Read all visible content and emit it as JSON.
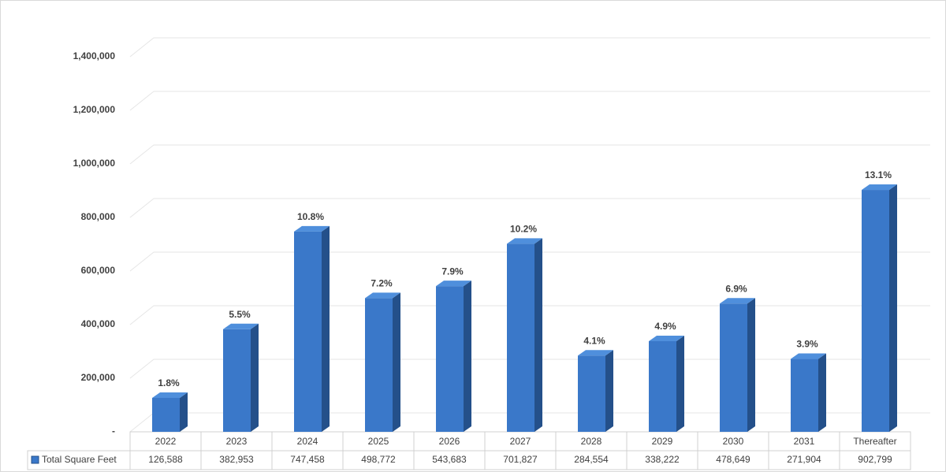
{
  "chart_data": {
    "type": "bar",
    "categories": [
      "2022",
      "2023",
      "2024",
      "2025",
      "2026",
      "2027",
      "2028",
      "2029",
      "2030",
      "2031",
      "Thereafter"
    ],
    "series": [
      {
        "name": "Total Square Feet",
        "color": "#3a78c9",
        "values": [
          126588,
          382953,
          747458,
          498772,
          543683,
          701827,
          284554,
          338222,
          478649,
          271904,
          902799
        ],
        "value_labels": [
          "126,588",
          "382,953",
          "747,458",
          "498,772",
          "543,683",
          "701,827",
          "284,554",
          "338,222",
          "478,649",
          "271,904",
          "902,799"
        ]
      }
    ],
    "percent_labels": [
      "1.8%",
      "5.5%",
      "10.8%",
      "7.2%",
      "7.9%",
      "10.2%",
      "4.1%",
      "4.9%",
      "6.9%",
      "3.9%",
      "13.1%"
    ],
    "ylim": [
      0,
      1400000
    ],
    "yticks": [
      {
        "value": 0,
        "label": "-"
      },
      {
        "value": 200000,
        "label": "200,000"
      },
      {
        "value": 400000,
        "label": "400,000"
      },
      {
        "value": 600000,
        "label": "600,000"
      },
      {
        "value": 800000,
        "label": "800,000"
      },
      {
        "value": 1000000,
        "label": "1,000,000"
      },
      {
        "value": 1200000,
        "label": "1,200,000"
      },
      {
        "value": 1400000,
        "label": "1,400,000"
      }
    ],
    "grid": true
  }
}
